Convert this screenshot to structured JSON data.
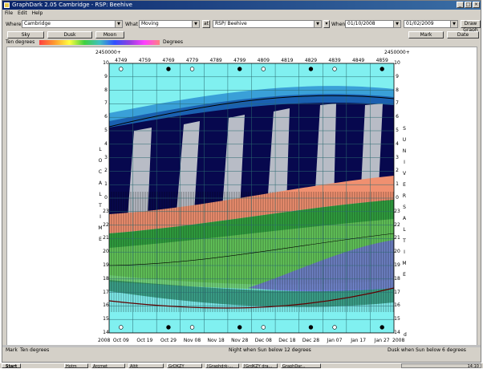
{
  "window": {
    "title": "GraphDark 2.05 Cambridge - RSP: Beehive"
  },
  "menu": [
    "File",
    "Edit",
    "Help"
  ],
  "toolbar": {
    "where_label": "Where",
    "where_value": "Cambridge",
    "what_label": "What",
    "what_value": "Moving",
    "at_button": "at",
    "object_value": "RSP/ Beehive",
    "when_label": "When",
    "date_from": "01/10/2008",
    "date_to": "01/02/2009",
    "draw_button": "Draw Graph"
  },
  "row2": {
    "sky_button": "Sky",
    "dusk_button": "Dusk",
    "moon_button": "Moon",
    "mark_button": "Mark",
    "date_button": "Date"
  },
  "legend": {
    "left_label": "Ten degrees",
    "right_label": "Degrees"
  },
  "plot": {
    "top_left_label": "2450000+",
    "top_right_label": "2450000+",
    "jd_ticks": [
      "4749",
      "4759",
      "4769",
      "4779",
      "4789",
      "4799",
      "4809",
      "4819",
      "4829",
      "4839",
      "4849",
      "4859"
    ],
    "date_ticks": [
      "Oct 09",
      "Oct 19",
      "Oct 29",
      "Nov 08",
      "Nov 18",
      "Nov 28",
      "Dec 08",
      "Dec 18",
      "Dec 28",
      "Jan 07",
      "Jan 17",
      "Jan 27"
    ],
    "hours_left": [
      "10",
      "9",
      "8",
      "7",
      "6",
      "5",
      "4",
      "3",
      "2",
      "1",
      "0",
      "23",
      "22",
      "21",
      "20",
      "19",
      "18",
      "17",
      "16",
      "15",
      "14"
    ],
    "hours_right": [
      "10",
      "9",
      "8",
      "7",
      "6",
      "5",
      "4",
      "3",
      "2",
      "1",
      "0",
      "23",
      "22",
      "21",
      "20",
      "19",
      "18",
      "17",
      "16",
      "15",
      "14"
    ],
    "left_letters": [
      "L",
      "O",
      "C",
      "A",
      "L",
      "T",
      "I",
      "M",
      "E"
    ],
    "right_letters": [
      "S",
      "U",
      "N",
      "I",
      "V",
      "E",
      "R",
      "S",
      "A",
      "L",
      "T",
      "I",
      "M",
      "E"
    ],
    "year_left": "2008",
    "year_right": "2008",
    "axis_right_tag": "d"
  },
  "status": {
    "left_a": "Mark",
    "left_b": "Ten degrees",
    "middle": "Night when Sun below 12 degrees",
    "right": "Dusk when Sun below 6 degrees"
  },
  "taskbar": {
    "start": "Start",
    "items": [
      "Hotm",
      "Arcmet",
      "Altit",
      "GrDKZY",
      "[Graphdrk-...",
      "[GrdKZY dra...",
      "GraphDar..."
    ],
    "clock": "14:10"
  }
}
